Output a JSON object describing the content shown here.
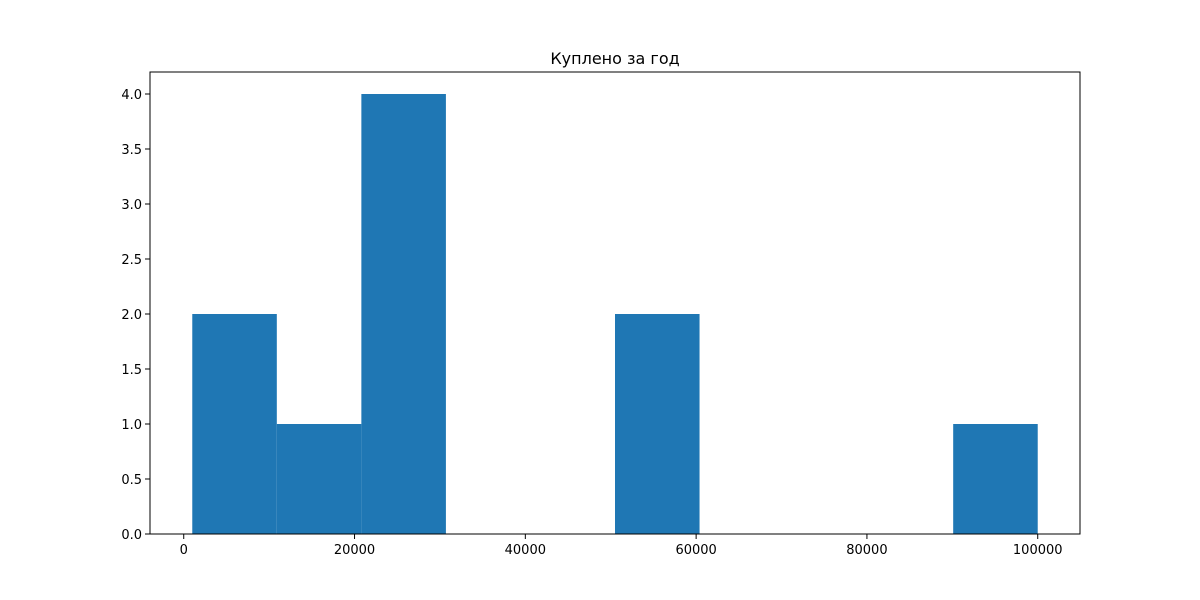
{
  "chart_data": {
    "type": "bar",
    "subtype": "histogram",
    "title": "Куплено за год",
    "xlabel": "",
    "ylabel": "",
    "bins": [
      {
        "start": 1000,
        "end": 10900,
        "count": 2
      },
      {
        "start": 10900,
        "end": 20800,
        "count": 1
      },
      {
        "start": 20800,
        "end": 30700,
        "count": 4
      },
      {
        "start": 30700,
        "end": 40600,
        "count": 0
      },
      {
        "start": 40600,
        "end": 50500,
        "count": 0
      },
      {
        "start": 50500,
        "end": 60400,
        "count": 2
      },
      {
        "start": 60400,
        "end": 70300,
        "count": 0
      },
      {
        "start": 70300,
        "end": 80200,
        "count": 0
      },
      {
        "start": 80200,
        "end": 90100,
        "count": 0
      },
      {
        "start": 90100,
        "end": 100000,
        "count": 1
      }
    ],
    "xlim": [
      -3950,
      104950
    ],
    "ylim": [
      0,
      4.2
    ],
    "xticks": [
      0,
      20000,
      40000,
      60000,
      80000,
      100000
    ],
    "xtick_labels": [
      "0",
      "20000",
      "40000",
      "60000",
      "80000",
      "100000"
    ],
    "yticks": [
      0,
      0.5,
      1.0,
      1.5,
      2.0,
      2.5,
      3.0,
      3.5,
      4.0
    ],
    "ytick_labels": [
      "0.0",
      "0.5",
      "1.0",
      "1.5",
      "2.0",
      "2.5",
      "3.0",
      "3.5",
      "4.0"
    ],
    "grid": false,
    "legend": "none",
    "bar_color": "#1f77b4"
  }
}
